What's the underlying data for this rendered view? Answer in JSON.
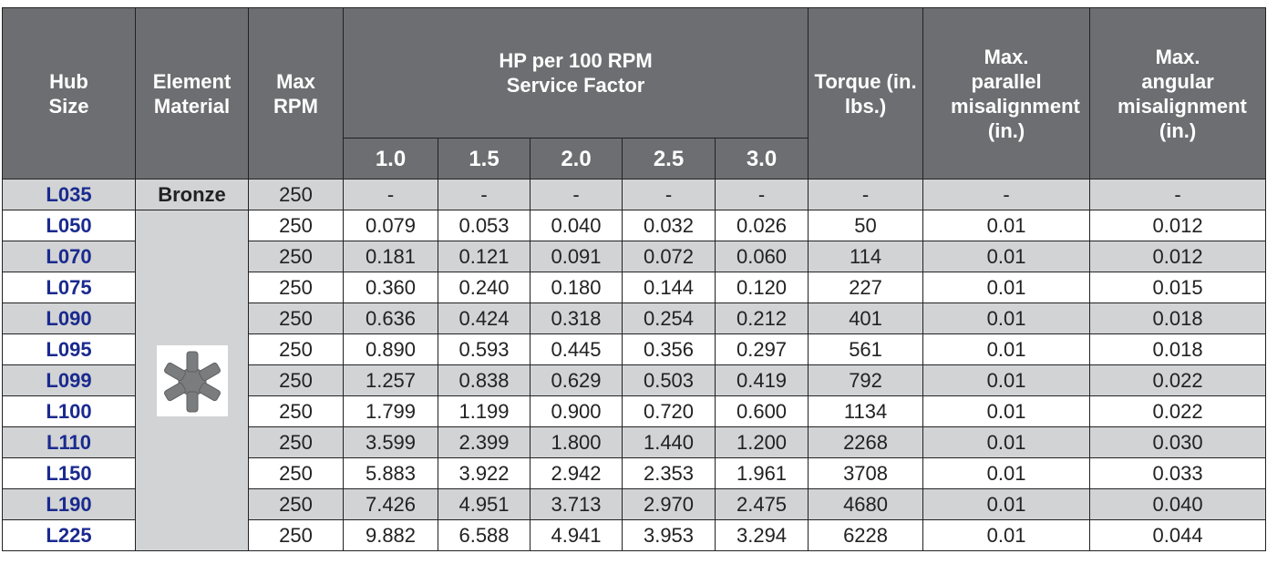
{
  "header": {
    "hub_size": "Hub Size",
    "element_material": "Element Material",
    "max_rpm": "Max RPM",
    "hp_group": [
      "HP per 100 RPM",
      "Service Factor"
    ],
    "service_factors": [
      "1.0",
      "1.5",
      "2.0",
      "2.5",
      "3.0"
    ],
    "torque": "Torque (in. lbs.)",
    "parallel": "Max. parallel misalignment (in.)",
    "angular": "Max. angular misalignment (in.)"
  },
  "element_material": "Bronze",
  "table": {
    "rows": [
      {
        "hub": "L035",
        "rpm": "250",
        "hp": [
          "-",
          "-",
          "-",
          "-",
          "-"
        ],
        "torque": "-",
        "parallel": "-",
        "angular": "-"
      },
      {
        "hub": "L050",
        "rpm": "250",
        "hp": [
          "0.079",
          "0.053",
          "0.040",
          "0.032",
          "0.026"
        ],
        "torque": "50",
        "parallel": "0.01",
        "angular": "0.012"
      },
      {
        "hub": "L070",
        "rpm": "250",
        "hp": [
          "0.181",
          "0.121",
          "0.091",
          "0.072",
          "0.060"
        ],
        "torque": "114",
        "parallel": "0.01",
        "angular": "0.012"
      },
      {
        "hub": "L075",
        "rpm": "250",
        "hp": [
          "0.360",
          "0.240",
          "0.180",
          "0.144",
          "0.120"
        ],
        "torque": "227",
        "parallel": "0.01",
        "angular": "0.015"
      },
      {
        "hub": "L090",
        "rpm": "250",
        "hp": [
          "0.636",
          "0.424",
          "0.318",
          "0.254",
          "0.212"
        ],
        "torque": "401",
        "parallel": "0.01",
        "angular": "0.018"
      },
      {
        "hub": "L095",
        "rpm": "250",
        "hp": [
          "0.890",
          "0.593",
          "0.445",
          "0.356",
          "0.297"
        ],
        "torque": "561",
        "parallel": "0.01",
        "angular": "0.018"
      },
      {
        "hub": "L099",
        "rpm": "250",
        "hp": [
          "1.257",
          "0.838",
          "0.629",
          "0.503",
          "0.419"
        ],
        "torque": "792",
        "parallel": "0.01",
        "angular": "0.022"
      },
      {
        "hub": "L100",
        "rpm": "250",
        "hp": [
          "1.799",
          "1.199",
          "0.900",
          "0.720",
          "0.600"
        ],
        "torque": "1134",
        "parallel": "0.01",
        "angular": "0.022"
      },
      {
        "hub": "L110",
        "rpm": "250",
        "hp": [
          "3.599",
          "2.399",
          "1.800",
          "1.440",
          "1.200"
        ],
        "torque": "2268",
        "parallel": "0.01",
        "angular": "0.030"
      },
      {
        "hub": "L150",
        "rpm": "250",
        "hp": [
          "5.883",
          "3.922",
          "2.942",
          "2.353",
          "1.961"
        ],
        "torque": "3708",
        "parallel": "0.01",
        "angular": "0.033"
      },
      {
        "hub": "L190",
        "rpm": "250",
        "hp": [
          "7.426",
          "4.951",
          "3.713",
          "2.970",
          "2.475"
        ],
        "torque": "4680",
        "parallel": "0.01",
        "angular": "0.040"
      },
      {
        "hub": "L225",
        "rpm": "250",
        "hp": [
          "9.882",
          "6.588",
          "4.941",
          "3.953",
          "3.294"
        ],
        "torque": "6228",
        "parallel": "0.01",
        "angular": "0.044"
      }
    ]
  }
}
